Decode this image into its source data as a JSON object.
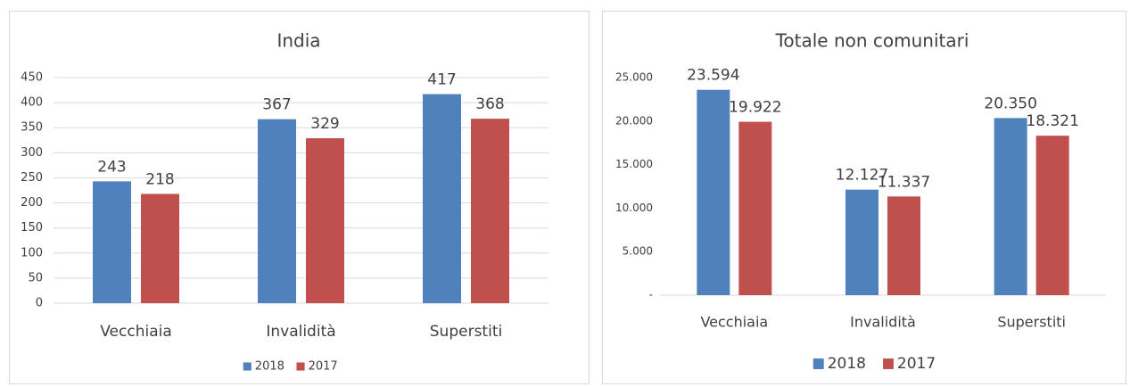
{
  "chart_data": [
    {
      "type": "bar",
      "title": "India",
      "categories": [
        "Vecchiaia",
        "Invalidità",
        "Superstiti"
      ],
      "series": [
        {
          "name": "2018",
          "color": "#4f81bd",
          "values": [
            243,
            367,
            417
          ]
        },
        {
          "name": "2017",
          "color": "#c0504d",
          "values": [
            218,
            329,
            368
          ]
        }
      ],
      "ylim": [
        0,
        450
      ],
      "yticks": [
        0,
        50,
        100,
        150,
        200,
        250,
        300,
        350,
        400,
        450
      ],
      "grid": true,
      "legend": "bottom"
    },
    {
      "type": "bar",
      "title": "Totale non comunitari",
      "categories": [
        "Vecchiaia",
        "Invalidità",
        "Superstiti"
      ],
      "series": [
        {
          "name": "2018",
          "color": "#4f81bd",
          "values": [
            23594,
            12127,
            20350
          ],
          "value_labels": [
            "23.594",
            "12.127",
            "20.350"
          ]
        },
        {
          "name": "2017",
          "color": "#c0504d",
          "values": [
            19922,
            11337,
            18321
          ],
          "value_labels": [
            "19.922",
            "11.337",
            "18.321"
          ]
        }
      ],
      "ylim": [
        0,
        25000
      ],
      "yticks": [
        {
          "value": 0,
          "label": "-"
        },
        {
          "value": 5000,
          "label": "5.000"
        },
        {
          "value": 10000,
          "label": "10.000"
        },
        {
          "value": 15000,
          "label": "15.000"
        },
        {
          "value": 20000,
          "label": "20.000"
        },
        {
          "value": 25000,
          "label": "25.000"
        }
      ],
      "grid": false,
      "legend": "bottom"
    }
  ]
}
